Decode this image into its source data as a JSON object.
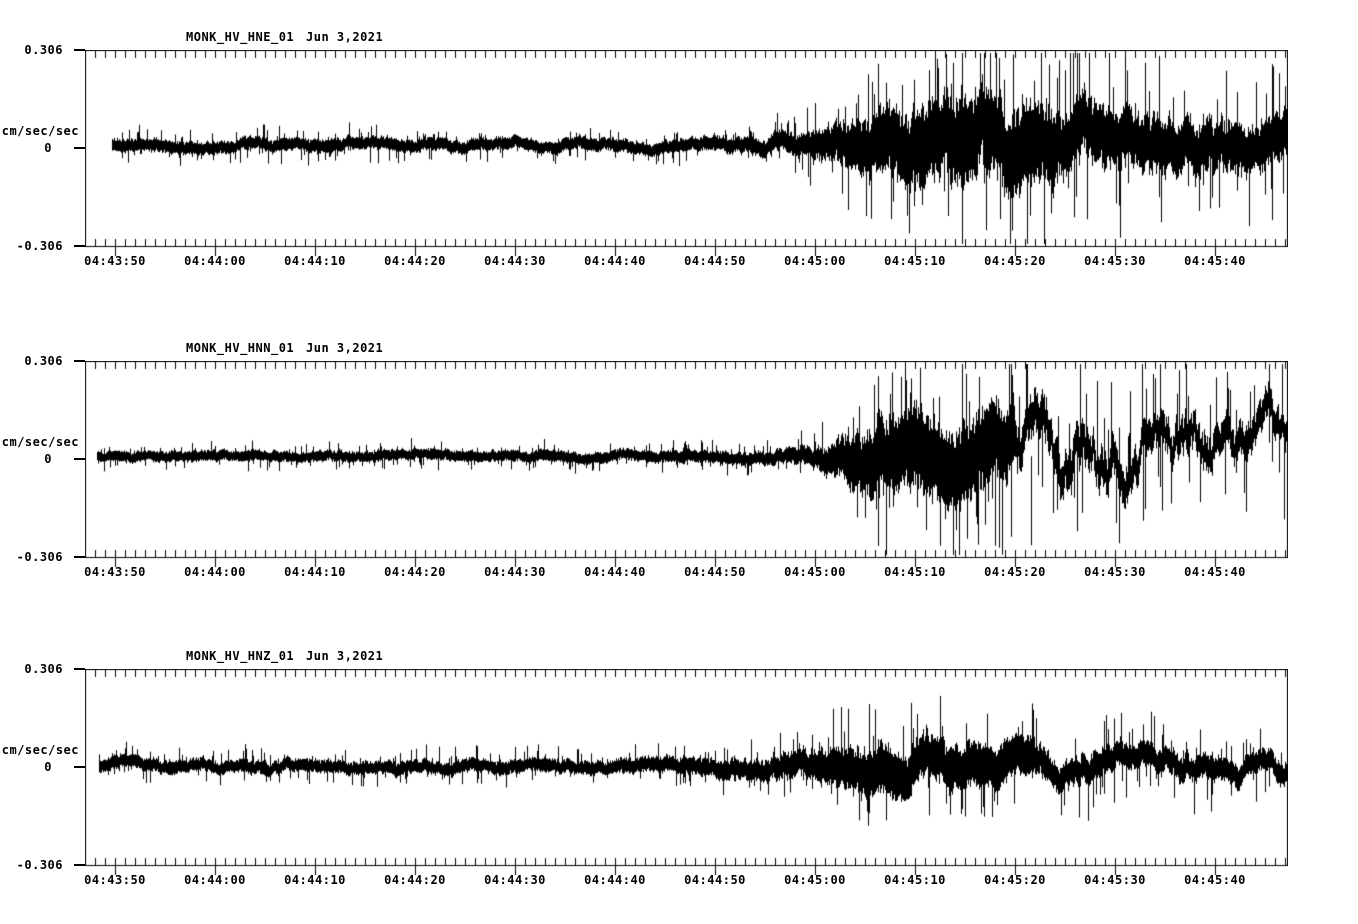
{
  "page": {
    "background": "#ffffff",
    "ink": "#000000"
  },
  "chart_data": {
    "type": "line",
    "kind": "three-component-seismogram",
    "shared": {
      "ylabel": "cm/sec/sec",
      "ylim": [
        -0.306,
        0.306
      ],
      "y_ticks": [
        {
          "label": "0.306",
          "value": 0.306
        },
        {
          "label": "0",
          "value": 0
        },
        {
          "label": "-0.306",
          "value": -0.306
        }
      ],
      "x_ticks": [
        "04:43:50",
        "04:44:00",
        "04:44:10",
        "04:44:20",
        "04:44:30",
        "04:44:40",
        "04:44:50",
        "04:45:00",
        "04:45:10",
        "04:45:20",
        "04:45:30",
        "04:45:40"
      ],
      "x_axis_start_time": "04:43:47",
      "x_minor_tick_seconds": 1,
      "x_major_tick_seconds": 10,
      "first_major_tick_offset_seconds": 3,
      "total_window_seconds": 120.3,
      "grid": "off",
      "trace_color": "#000000"
    },
    "traces": [
      {
        "station": "MONK_HV_HNE_01",
        "date": "Jun 3,2021",
        "seed": 11,
        "start_t": 2.7,
        "offset": 0.012,
        "wander": 0.5,
        "coda_start": 97,
        "coda_wander": 0.55,
        "coda_band_frac": 0.85,
        "spike_prob": 0.11,
        "envelope": [
          [
            2.7,
            0.03
          ],
          [
            20,
            0.03
          ],
          [
            40,
            0.029
          ],
          [
            55,
            0.03
          ],
          [
            63,
            0.033
          ],
          [
            68,
            0.04
          ],
          [
            72,
            0.055
          ],
          [
            75,
            0.085
          ],
          [
            78,
            0.13
          ],
          [
            81,
            0.17
          ],
          [
            84,
            0.185
          ],
          [
            88,
            0.195
          ],
          [
            93,
            0.19
          ],
          [
            98,
            0.175
          ],
          [
            103,
            0.16
          ],
          [
            108,
            0.148
          ],
          [
            113,
            0.138
          ],
          [
            120.3,
            0.128
          ]
        ],
        "events": [
          [
            85.2,
            0.28
          ],
          [
            90.1,
            -0.255
          ],
          [
            96.4,
            0.262
          ],
          [
            103.5,
            -0.278
          ]
        ]
      },
      {
        "station": "MONK_HV_HNN_01",
        "date": "Jun 3,2021",
        "seed": 22,
        "start_t": 1.2,
        "offset": 0.01,
        "wander": 0.45,
        "coda_start": 93,
        "coda_wander": 1.05,
        "coda_band_frac": 0.55,
        "spike_prob": 0.1,
        "envelope": [
          [
            1.2,
            0.025
          ],
          [
            30,
            0.025
          ],
          [
            55,
            0.026
          ],
          [
            65,
            0.029
          ],
          [
            70,
            0.034
          ],
          [
            73,
            0.048
          ],
          [
            75,
            0.08
          ],
          [
            77,
            0.125
          ],
          [
            79,
            0.16
          ],
          [
            82,
            0.18
          ],
          [
            85,
            0.185
          ],
          [
            88,
            0.18
          ],
          [
            92,
            0.17
          ],
          [
            96,
            0.158
          ],
          [
            101,
            0.145
          ],
          [
            106,
            0.138
          ],
          [
            112,
            0.132
          ],
          [
            120.3,
            0.125
          ]
        ],
        "events": [
          [
            79.3,
            -0.27
          ],
          [
            81.6,
            0.258
          ],
          [
            88.1,
            0.268
          ],
          [
            94.6,
            -0.268
          ],
          [
            101.2,
            0.245
          ]
        ]
      },
      {
        "station": "MONK_HV_HNZ_01",
        "date": "Jun 3,2021",
        "seed": 33,
        "start_t": 1.4,
        "offset": 0.004,
        "wander": 0.55,
        "coda_start": 95,
        "coda_wander": 0.7,
        "coda_band_frac": 0.8,
        "spike_prob": 0.11,
        "envelope": [
          [
            1.4,
            0.03
          ],
          [
            30,
            0.03
          ],
          [
            50,
            0.032
          ],
          [
            58,
            0.035
          ],
          [
            64,
            0.043
          ],
          [
            68,
            0.052
          ],
          [
            72,
            0.065
          ],
          [
            75,
            0.088
          ],
          [
            78,
            0.108
          ],
          [
            80,
            0.115
          ],
          [
            83,
            0.108
          ],
          [
            86,
            0.1
          ],
          [
            90,
            0.102
          ],
          [
            94,
            0.09
          ],
          [
            98,
            0.082
          ],
          [
            103,
            0.075
          ],
          [
            108,
            0.07
          ],
          [
            114,
            0.066
          ],
          [
            120.3,
            0.062
          ]
        ],
        "events": [
          [
            78.4,
            0.198
          ],
          [
            80.1,
            -0.165
          ],
          [
            90.2,
            0.168
          ]
        ]
      }
    ]
  }
}
